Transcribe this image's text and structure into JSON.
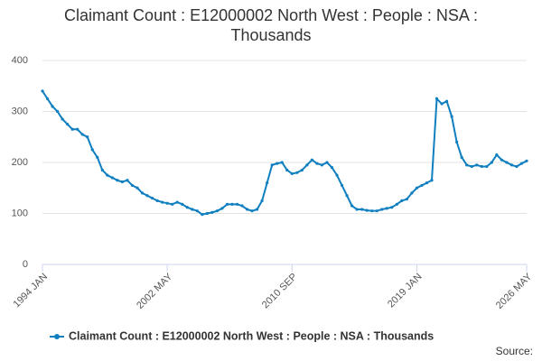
{
  "chart_data": {
    "type": "line",
    "title": "Claimant Count : E12000002 North West : People : NSA : Thousands",
    "categories": [
      "1994 JAN",
      null,
      null,
      null,
      null,
      null,
      null,
      null,
      null,
      null,
      null,
      null,
      null,
      null,
      null,
      null,
      null,
      null,
      null,
      null,
      null,
      null,
      null,
      null,
      null,
      "2002 MAY",
      null,
      null,
      null,
      null,
      null,
      null,
      null,
      null,
      null,
      null,
      null,
      null,
      null,
      null,
      null,
      null,
      null,
      null,
      null,
      null,
      null,
      null,
      null,
      null,
      "2010 SEP",
      null,
      null,
      null,
      null,
      null,
      null,
      null,
      null,
      null,
      null,
      null,
      null,
      null,
      null,
      null,
      null,
      null,
      null,
      null,
      null,
      null,
      null,
      null,
      null,
      "2019 JAN",
      null,
      null,
      null,
      null,
      null,
      null,
      null,
      null,
      null,
      null,
      null,
      null,
      null,
      null,
      null,
      null,
      null,
      null,
      null,
      null,
      null,
      "2026 MAY"
    ],
    "series": [
      {
        "name": "Claimant Count : E12000002 North West : People : NSA : Thousands",
        "color": "#0f7fc0",
        "values": [
          340,
          325,
          310,
          300,
          285,
          275,
          265,
          265,
          255,
          250,
          225,
          210,
          185,
          175,
          170,
          165,
          162,
          165,
          155,
          150,
          140,
          135,
          130,
          125,
          122,
          120,
          118,
          122,
          118,
          112,
          108,
          105,
          98,
          100,
          102,
          105,
          110,
          118,
          118,
          118,
          115,
          108,
          105,
          108,
          125,
          160,
          195,
          198,
          200,
          185,
          178,
          180,
          185,
          195,
          205,
          198,
          195,
          200,
          190,
          175,
          155,
          135,
          115,
          108,
          108,
          106,
          105,
          105,
          108,
          110,
          112,
          118,
          125,
          128,
          140,
          150,
          155,
          160,
          165,
          325,
          315,
          320,
          290,
          240,
          210,
          195,
          192,
          195,
          192,
          192,
          200,
          215,
          205,
          200,
          195,
          192,
          198,
          203
        ]
      }
    ],
    "ylim": [
      0,
      400
    ],
    "yticks": [
      0,
      100,
      200,
      300,
      400
    ],
    "grid": true,
    "source_label": "Source:"
  }
}
